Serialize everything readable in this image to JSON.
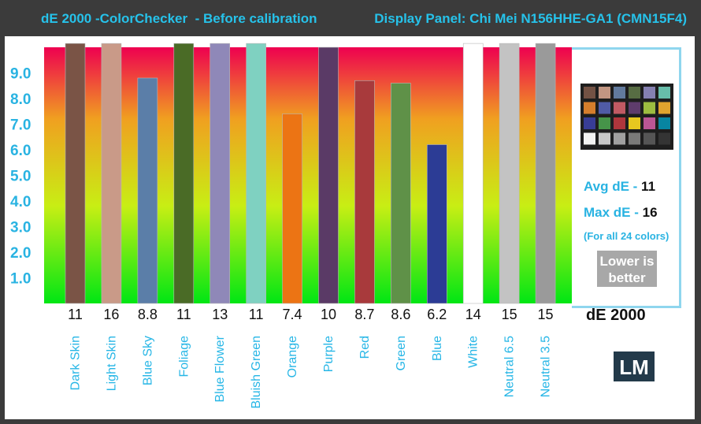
{
  "header": {
    "title_left": "dE 2000 -ColorChecker  - Before calibration",
    "title_right": "Display Panel: Chi Mei N156HHE-GA1 (CMN15F4)"
  },
  "summary": {
    "avg_label": "Avg dE - ",
    "avg_value": "11",
    "max_label": "Max dE - ",
    "max_value": "16",
    "note": "(For all 24 colors)",
    "lower_line1": "Lower is",
    "lower_line2": "better",
    "metric_label": "dE 2000",
    "logo": "LM"
  },
  "chart_data": {
    "type": "bar",
    "title": "dE 2000 -ColorChecker  - Before calibration",
    "categories": [
      "Dark Skin",
      "Light Skin",
      "Blue Sky",
      "Foliage",
      "Blue Flower",
      "Bluish Green",
      "Orange",
      "Purple",
      "Red",
      "Green",
      "Blue",
      "White",
      "Neutral 6.5",
      "Neutral 3.5"
    ],
    "values": [
      11,
      16,
      8.8,
      11,
      13,
      11,
      7.4,
      10,
      8.7,
      8.6,
      6.2,
      14,
      15,
      15
    ],
    "value_labels": [
      "11",
      "16",
      "8.8",
      "11",
      "13",
      "11",
      "7.4",
      "10",
      "8.7",
      "8.6",
      "6.2",
      "14",
      "15",
      "15"
    ],
    "bar_colors": [
      "#7a5446",
      "#c99a88",
      "#5b7ea8",
      "#4a6b26",
      "#8f88b8",
      "#7fd1c1",
      "#ec7414",
      "#5a3a66",
      "#a83a3c",
      "#5f9148",
      "#2c3c95",
      "#ffffff",
      "#c3c3c3",
      "#9a9a9a"
    ],
    "ylim": [
      0,
      10
    ],
    "yticks": [
      1.0,
      2.0,
      3.0,
      4.0,
      5.0,
      6.0,
      7.0,
      8.0,
      9.0
    ],
    "ytick_labels": [
      "1.0",
      "2.0",
      "3.0",
      "4.0",
      "5.0",
      "6.0",
      "7.0",
      "8.0",
      "9.0"
    ],
    "background_gradient": [
      "#00e614",
      "#c8ee14",
      "#f0a020",
      "#ee0050"
    ],
    "xlabel": "",
    "ylabel": ""
  },
  "colorchecker_swatches": [
    "#735244",
    "#c29682",
    "#627a9d",
    "#576c43",
    "#8580b1",
    "#67bdaa",
    "#d67e2c",
    "#505ba6",
    "#c15a63",
    "#5e3c6c",
    "#9dbc40",
    "#e0a32e",
    "#383d96",
    "#469449",
    "#af363c",
    "#e7c71f",
    "#bb5695",
    "#0885a1",
    "#f3f3f2",
    "#c8c8c8",
    "#a0a0a0",
    "#7a7a79",
    "#555555",
    "#343434"
  ]
}
